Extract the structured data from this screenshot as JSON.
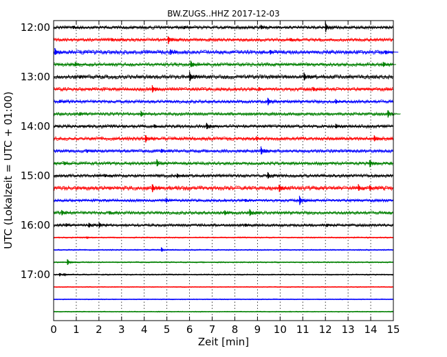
{
  "chart_data": {
    "type": "line",
    "title": "BW.ZUGS..HHZ 2017-12-03",
    "xlabel": "Zeit  [min]",
    "ylabel": "UTC (Lokalzeit = UTC + 01:00)",
    "xlim": [
      0,
      15
    ],
    "x_ticks": [
      "0",
      "1",
      "2",
      "3",
      "4",
      "5",
      "6",
      "7",
      "8",
      "9",
      "10",
      "11",
      "12",
      "13",
      "14",
      "15"
    ],
    "y_tick_labels": [
      "12:00",
      "13:00",
      "14:00",
      "15:00",
      "16:00",
      "17:00"
    ],
    "grid": "vertical dotted",
    "trace_colors": [
      "#000000",
      "#ff0000",
      "#0000ff",
      "#008000"
    ],
    "trace_interval_minutes": 15,
    "traces": [
      {
        "start": "12:00",
        "end_min": 15,
        "amplitude": 2.0,
        "spikes": [
          [
            12.05,
            8
          ],
          [
            9.2,
            4
          ],
          [
            5.8,
            3
          ],
          [
            0.9,
            3
          ]
        ]
      },
      {
        "start": "12:15",
        "end_min": 15,
        "amplitude": 2.0,
        "spikes": [
          [
            5.1,
            7
          ],
          [
            2.6,
            3
          ],
          [
            10.5,
            3
          ]
        ]
      },
      {
        "start": "12:30",
        "end_min": 15,
        "amplitude": 2.5,
        "spikes": [
          [
            0.1,
            6
          ],
          [
            5.2,
            5
          ],
          [
            9.6,
            4
          ],
          [
            14.7,
            3
          ]
        ]
      },
      {
        "start": "12:45",
        "end_min": 15,
        "amplitude": 2.2,
        "spikes": [
          [
            1.0,
            4
          ],
          [
            6.1,
            6
          ],
          [
            14.6,
            5
          ]
        ]
      },
      {
        "start": "13:00",
        "end_min": 15,
        "amplitude": 2.5,
        "spikes": [
          [
            6.05,
            8
          ],
          [
            11.1,
            7
          ],
          [
            1.2,
            3
          ]
        ]
      },
      {
        "start": "13:15",
        "end_min": 15,
        "amplitude": 2.2,
        "spikes": [
          [
            4.4,
            6
          ],
          [
            11.5,
            4
          ],
          [
            9.1,
            3
          ]
        ]
      },
      {
        "start": "13:30",
        "end_min": 15,
        "amplitude": 2.0,
        "spikes": [
          [
            9.5,
            7
          ],
          [
            12.5,
            4
          ],
          [
            0.3,
            3
          ]
        ]
      },
      {
        "start": "13:45",
        "end_min": 15,
        "amplitude": 2.0,
        "spikes": [
          [
            3.9,
            5
          ],
          [
            14.8,
            7
          ],
          [
            1.2,
            3
          ]
        ]
      },
      {
        "start": "14:00",
        "end_min": 15,
        "amplitude": 2.0,
        "spikes": [
          [
            6.8,
            6
          ],
          [
            12.5,
            4
          ],
          [
            4.5,
            3
          ]
        ]
      },
      {
        "start": "14:15",
        "end_min": 15,
        "amplitude": 2.2,
        "spikes": [
          [
            4.1,
            7
          ],
          [
            14.2,
            5
          ],
          [
            9.0,
            4
          ]
        ]
      },
      {
        "start": "14:30",
        "end_min": 15,
        "amplitude": 2.0,
        "spikes": [
          [
            9.2,
            7
          ],
          [
            4.8,
            4
          ],
          [
            1.5,
            3
          ]
        ]
      },
      {
        "start": "14:45",
        "end_min": 15,
        "amplitude": 2.0,
        "spikes": [
          [
            4.6,
            6
          ],
          [
            14.0,
            7
          ],
          [
            0.5,
            3
          ]
        ]
      },
      {
        "start": "15:00",
        "end_min": 15,
        "amplitude": 2.0,
        "spikes": [
          [
            9.5,
            6
          ],
          [
            5.5,
            4
          ],
          [
            2.3,
            3
          ]
        ]
      },
      {
        "start": "15:15",
        "end_min": 15,
        "amplitude": 2.5,
        "spikes": [
          [
            4.4,
            7
          ],
          [
            10.0,
            7
          ],
          [
            13.5,
            6
          ],
          [
            14.0,
            5
          ]
        ]
      },
      {
        "start": "15:30",
        "end_min": 15,
        "amplitude": 1.8,
        "spikes": [
          [
            10.9,
            8
          ],
          [
            5.0,
            4
          ],
          [
            8.5,
            3
          ]
        ]
      },
      {
        "start": "15:45",
        "end_min": 15,
        "amplitude": 2.0,
        "spikes": [
          [
            0.4,
            5
          ],
          [
            7.6,
            4
          ],
          [
            8.7,
            6
          ],
          [
            2.5,
            3
          ]
        ]
      },
      {
        "start": "16:00",
        "end_min": 15,
        "amplitude": 1.8,
        "spikes": [
          [
            1.6,
            4
          ],
          [
            2.05,
            5
          ],
          [
            0.6,
            3
          ],
          [
            8.5,
            3
          ],
          [
            12.1,
            3
          ]
        ]
      },
      {
        "start": "16:15",
        "end_min": 15,
        "amplitude": 0.8,
        "spikes": [
          [
            1.5,
            2
          ]
        ]
      },
      {
        "start": "16:30",
        "end_min": 15,
        "amplitude": 0.8,
        "spikes": [
          [
            4.8,
            4
          ]
        ]
      },
      {
        "start": "16:45",
        "end_min": 15,
        "amplitude": 0.8,
        "spikes": [
          [
            0.65,
            5
          ]
        ]
      },
      {
        "start": "17:00",
        "end_min": 15,
        "amplitude": 0.8,
        "spikes": [
          [
            0.3,
            3
          ],
          [
            0.5,
            2
          ]
        ]
      },
      {
        "start": "17:15",
        "end_min": 15,
        "amplitude": 0.6,
        "spikes": []
      },
      {
        "start": "17:30",
        "end_min": 15,
        "amplitude": 0.6,
        "spikes": []
      },
      {
        "start": "17:45",
        "end_min": 15,
        "amplitude": 0.6,
        "spikes": []
      }
    ]
  }
}
